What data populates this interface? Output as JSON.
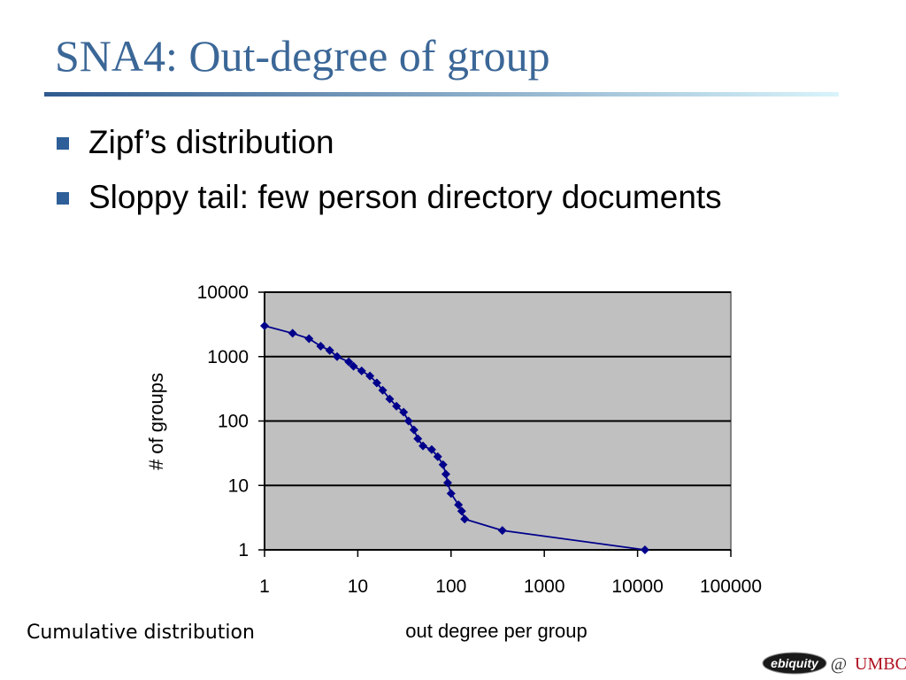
{
  "title": "SNA4: Out-degree of group",
  "bullets": [
    "Zipf’s distribution",
    "Sloppy tail: few person directory documents"
  ],
  "caption": "Cumulative distribution",
  "footer": {
    "logo": "ebiquity",
    "at": "@",
    "org": "UMBC"
  },
  "chart_data": {
    "type": "scatter-line",
    "xlabel": "out degree per group",
    "ylabel": "# of groups",
    "x": [
      1,
      2,
      3,
      4,
      5,
      6,
      8,
      9,
      11,
      13.5,
      16,
      18.5,
      22,
      26,
      31,
      35,
      40,
      44,
      50,
      62,
      72,
      82,
      88,
      92,
      100,
      120,
      130,
      140,
      355,
      12000
    ],
    "values": [
      3000,
      2300,
      1900,
      1450,
      1250,
      1000,
      830,
      710,
      600,
      500,
      390,
      300,
      220,
      170,
      137,
      100,
      73,
      53,
      41,
      36,
      28,
      21,
      15,
      11,
      7.5,
      5,
      4,
      3,
      2,
      1
    ],
    "color": "#00008b",
    "xlim": [
      1,
      100000
    ],
    "xticks": [
      1,
      10,
      100,
      1000,
      10000,
      100000
    ],
    "ylim": [
      1,
      10000
    ],
    "yticks": [
      1,
      10,
      100,
      1000,
      10000
    ],
    "xlog": true,
    "ylog": true,
    "grid": true
  }
}
